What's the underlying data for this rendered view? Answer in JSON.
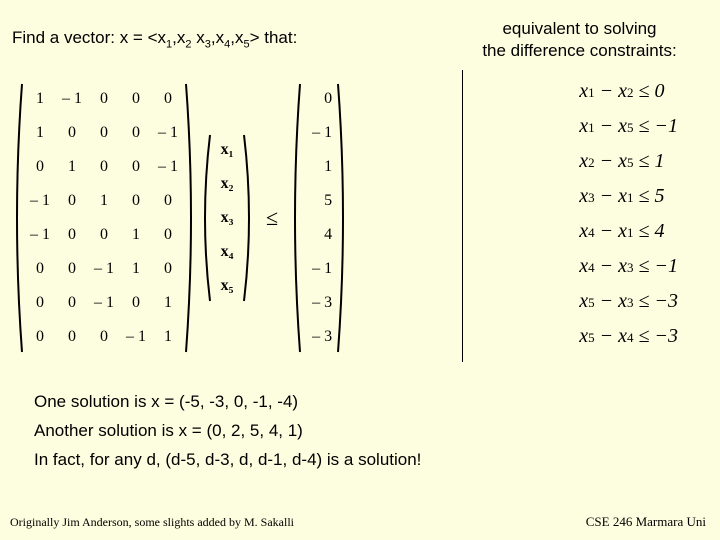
{
  "header": {
    "find_vector": "Find a vector:  x = <x",
    "s1": "1",
    "c1": ",x",
    "s2": "2",
    "sp": " x",
    "s3": "3",
    "c2": ",x",
    "s4": "4",
    "c3": ",x",
    "s5": "5",
    "that": ">  that:",
    "equiv_l1": "equivalent to solving",
    "equiv_l2": "the difference constraints:"
  },
  "matrix_A": {
    "rows": [
      [
        "1",
        "– 1",
        "0",
        "0",
        "0"
      ],
      [
        "1",
        "0",
        "0",
        "0",
        "– 1"
      ],
      [
        "0",
        "1",
        "0",
        "0",
        "– 1"
      ],
      [
        "– 1",
        "0",
        "1",
        "0",
        "0"
      ],
      [
        "– 1",
        "0",
        "0",
        "1",
        "0"
      ],
      [
        "0",
        "0",
        "– 1",
        "1",
        "0"
      ],
      [
        "0",
        "0",
        "– 1",
        "0",
        "1"
      ],
      [
        "0",
        "0",
        "0",
        "– 1",
        "1"
      ]
    ]
  },
  "vec_x": [
    "x₁",
    "x₂",
    "x₃",
    "x₄",
    "x₅"
  ],
  "le": "≤",
  "vec_b": [
    "0",
    "– 1",
    "1",
    "5",
    "4",
    "– 1",
    "– 3",
    "– 3"
  ],
  "constraints": [
    {
      "l": "x",
      "li": "1",
      "m": " − x",
      "mi": "2",
      "r": " ≤ 0"
    },
    {
      "l": "x",
      "li": "1",
      "m": " − x",
      "mi": "5",
      "r": " ≤ −1"
    },
    {
      "l": "x",
      "li": "2",
      "m": " − x",
      "mi": "5",
      "r": " ≤ 1"
    },
    {
      "l": "x",
      "li": "3",
      "m": " − x",
      "mi": "1",
      "r": " ≤ 5"
    },
    {
      "l": "x",
      "li": "4",
      "m": " − x",
      "mi": "1",
      "r": " ≤ 4"
    },
    {
      "l": "x",
      "li": "4",
      "m": " − x",
      "mi": "3",
      "r": " ≤ −1"
    },
    {
      "l": "x",
      "li": "5",
      "m": " − x",
      "mi": "3",
      "r": " ≤ −3"
    },
    {
      "l": "x",
      "li": "5",
      "m": " − x",
      "mi": "4",
      "r": " ≤ −3"
    }
  ],
  "bottom": {
    "l1": "One solution is x = (-5, -3, 0, -1, -4)",
    "l2": "Another solution is x = (0, 2, 5, 4, 1)",
    "l3": "In fact, for any d, (d-5, d-3, d, d-1, d-4) is a solution!"
  },
  "footer": {
    "left": "Originally Jim Anderson, some slights added by M. Sakalli",
    "right": "CSE 246 Marmara Uni"
  },
  "style": {
    "bg": "#fdfde0",
    "paren_color": "#000000"
  }
}
